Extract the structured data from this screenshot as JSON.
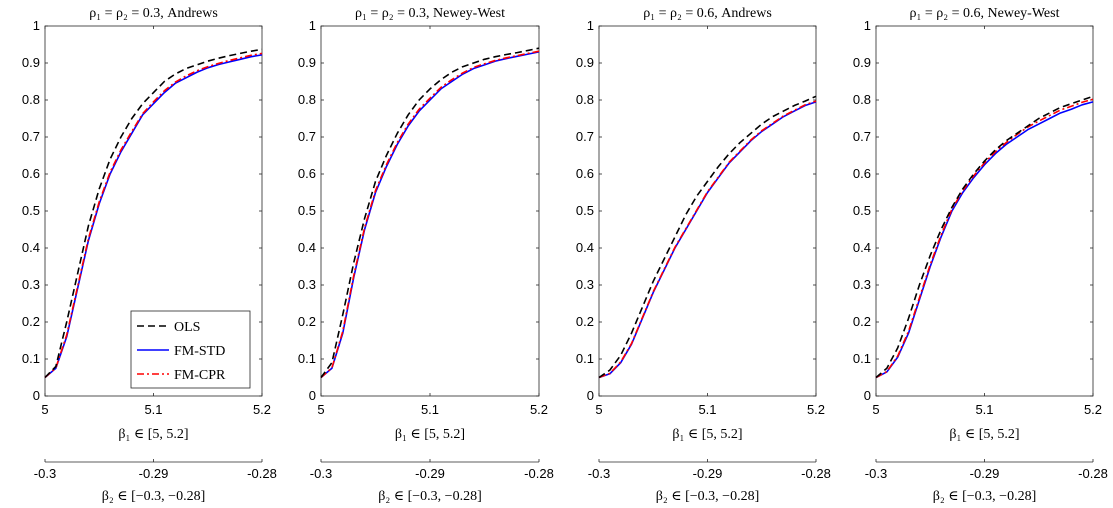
{
  "chart_data": [
    {
      "type": "line",
      "title": "ρ₁ = ρ₂ = 0.3, Andrews",
      "xlabel": "β₁ ∈ [5, 5.2]",
      "x2label": "β₂ ∈ [−0.3, −0.28]",
      "xlim": [
        5,
        5.2
      ],
      "ylim": [
        0,
        1
      ],
      "xticks": [
        "5",
        "5.1",
        "5.2"
      ],
      "x2ticks": [
        "-0.3",
        "-0.29",
        "-0.28"
      ],
      "yticks": [
        "0",
        "0.1",
        "0.2",
        "0.3",
        "0.4",
        "0.5",
        "0.6",
        "0.7",
        "0.8",
        "0.9",
        "1"
      ],
      "grid": false,
      "legend": {
        "position": "bottom-right",
        "entries": [
          "OLS",
          "FM-STD",
          "FM-CPR"
        ]
      },
      "x": [
        5.0,
        5.01,
        5.02,
        5.03,
        5.04,
        5.05,
        5.06,
        5.07,
        5.08,
        5.09,
        5.1,
        5.11,
        5.12,
        5.13,
        5.14,
        5.15,
        5.16,
        5.17,
        5.18,
        5.19,
        5.2
      ],
      "series": [
        {
          "name": "OLS",
          "color": "#000000",
          "dash": "dashed",
          "values": [
            0.05,
            0.08,
            0.2,
            0.33,
            0.46,
            0.56,
            0.64,
            0.7,
            0.75,
            0.79,
            0.82,
            0.85,
            0.87,
            0.885,
            0.895,
            0.905,
            0.913,
            0.92,
            0.926,
            0.932,
            0.937
          ]
        },
        {
          "name": "FM-STD",
          "color": "#0000ff",
          "dash": "solid",
          "values": [
            0.05,
            0.075,
            0.16,
            0.29,
            0.42,
            0.52,
            0.6,
            0.66,
            0.71,
            0.76,
            0.79,
            0.82,
            0.845,
            0.86,
            0.875,
            0.887,
            0.896,
            0.903,
            0.91,
            0.917,
            0.922
          ]
        },
        {
          "name": "FM-CPR",
          "color": "#ff0000",
          "dash": "dashdot",
          "values": [
            0.05,
            0.076,
            0.165,
            0.295,
            0.425,
            0.525,
            0.605,
            0.665,
            0.715,
            0.763,
            0.795,
            0.825,
            0.848,
            0.865,
            0.879,
            0.89,
            0.899,
            0.907,
            0.914,
            0.921,
            0.926
          ]
        }
      ]
    },
    {
      "type": "line",
      "title": "ρ₁ = ρ₂ = 0.3, Newey-West",
      "xlabel": "β₁ ∈ [5, 5.2]",
      "x2label": "β₂ ∈ [−0.3, −0.28]",
      "xlim": [
        5,
        5.2
      ],
      "ylim": [
        0,
        1
      ],
      "xticks": [
        "5",
        "5.1",
        "5.2"
      ],
      "x2ticks": [
        "-0.3",
        "-0.29",
        "-0.28"
      ],
      "yticks": [
        "0",
        "0.1",
        "0.2",
        "0.3",
        "0.4",
        "0.5",
        "0.6",
        "0.7",
        "0.8",
        "0.9",
        "1"
      ],
      "grid": false,
      "x": [
        5.0,
        5.01,
        5.02,
        5.03,
        5.04,
        5.05,
        5.06,
        5.07,
        5.08,
        5.09,
        5.1,
        5.11,
        5.12,
        5.13,
        5.14,
        5.15,
        5.16,
        5.17,
        5.18,
        5.19,
        5.2
      ],
      "series": [
        {
          "name": "OLS",
          "color": "#000000",
          "dash": "dashed",
          "values": [
            0.05,
            0.09,
            0.22,
            0.36,
            0.48,
            0.58,
            0.65,
            0.71,
            0.76,
            0.8,
            0.83,
            0.855,
            0.875,
            0.89,
            0.9,
            0.91,
            0.917,
            0.923,
            0.928,
            0.934,
            0.94
          ]
        },
        {
          "name": "FM-STD",
          "color": "#0000ff",
          "dash": "solid",
          "values": [
            0.05,
            0.075,
            0.17,
            0.32,
            0.45,
            0.55,
            0.62,
            0.68,
            0.73,
            0.77,
            0.8,
            0.83,
            0.85,
            0.87,
            0.885,
            0.895,
            0.905,
            0.912,
            0.918,
            0.924,
            0.93
          ]
        },
        {
          "name": "FM-CPR",
          "color": "#ff0000",
          "dash": "dashdot",
          "values": [
            0.05,
            0.076,
            0.175,
            0.325,
            0.455,
            0.555,
            0.625,
            0.685,
            0.735,
            0.775,
            0.805,
            0.834,
            0.855,
            0.873,
            0.888,
            0.898,
            0.907,
            0.914,
            0.92,
            0.926,
            0.932
          ]
        }
      ]
    },
    {
      "type": "line",
      "title": "ρ₁ = ρ₂ = 0.6, Andrews",
      "xlabel": "β₁ ∈ [5, 5.2]",
      "x2label": "β₂ ∈ [−0.3, −0.28]",
      "xlim": [
        5,
        5.2
      ],
      "ylim": [
        0,
        1
      ],
      "xticks": [
        "5",
        "5.1",
        "5.2"
      ],
      "x2ticks": [
        "-0.3",
        "-0.29",
        "-0.28"
      ],
      "yticks": [
        "0",
        "0.1",
        "0.2",
        "0.3",
        "0.4",
        "0.5",
        "0.6",
        "0.7",
        "0.8",
        "0.9",
        "1"
      ],
      "grid": false,
      "x": [
        5.0,
        5.01,
        5.02,
        5.03,
        5.04,
        5.05,
        5.06,
        5.07,
        5.08,
        5.09,
        5.1,
        5.11,
        5.12,
        5.13,
        5.14,
        5.15,
        5.16,
        5.17,
        5.18,
        5.19,
        5.2
      ],
      "series": [
        {
          "name": "OLS",
          "color": "#000000",
          "dash": "dashed",
          "values": [
            0.05,
            0.07,
            0.11,
            0.17,
            0.24,
            0.31,
            0.37,
            0.43,
            0.49,
            0.54,
            0.58,
            0.62,
            0.655,
            0.685,
            0.71,
            0.735,
            0.755,
            0.77,
            0.785,
            0.797,
            0.81
          ]
        },
        {
          "name": "FM-STD",
          "color": "#0000ff",
          "dash": "solid",
          "values": [
            0.05,
            0.06,
            0.09,
            0.14,
            0.21,
            0.28,
            0.34,
            0.4,
            0.45,
            0.5,
            0.55,
            0.59,
            0.63,
            0.66,
            0.69,
            0.715,
            0.735,
            0.755,
            0.77,
            0.785,
            0.795
          ]
        },
        {
          "name": "FM-CPR",
          "color": "#ff0000",
          "dash": "dashdot",
          "values": [
            0.05,
            0.061,
            0.092,
            0.142,
            0.212,
            0.282,
            0.342,
            0.402,
            0.452,
            0.502,
            0.552,
            0.592,
            0.632,
            0.662,
            0.692,
            0.717,
            0.737,
            0.757,
            0.772,
            0.787,
            0.797
          ]
        }
      ]
    },
    {
      "type": "line",
      "title": "ρ₁ = ρ₂ = 0.6, Newey-West",
      "xlabel": "β₁ ∈ [5, 5.2]",
      "x2label": "β₂ ∈ [−0.3, −0.28]",
      "xlim": [
        5,
        5.2
      ],
      "ylim": [
        0,
        1
      ],
      "xticks": [
        "5",
        "5.1",
        "5.2"
      ],
      "x2ticks": [
        "-0.3",
        "-0.29",
        "-0.28"
      ],
      "yticks": [
        "0",
        "0.1",
        "0.2",
        "0.3",
        "0.4",
        "0.5",
        "0.6",
        "0.7",
        "0.8",
        "0.9",
        "1"
      ],
      "grid": false,
      "x": [
        5.0,
        5.01,
        5.02,
        5.03,
        5.04,
        5.05,
        5.06,
        5.07,
        5.08,
        5.09,
        5.1,
        5.11,
        5.12,
        5.13,
        5.14,
        5.15,
        5.16,
        5.17,
        5.18,
        5.19,
        5.2
      ],
      "series": [
        {
          "name": "OLS",
          "color": "#000000",
          "dash": "dashed",
          "values": [
            0.05,
            0.075,
            0.13,
            0.21,
            0.3,
            0.38,
            0.45,
            0.51,
            0.56,
            0.6,
            0.635,
            0.665,
            0.69,
            0.71,
            0.73,
            0.75,
            0.765,
            0.78,
            0.79,
            0.8,
            0.81
          ]
        },
        {
          "name": "FM-STD",
          "color": "#0000ff",
          "dash": "solid",
          "values": [
            0.05,
            0.065,
            0.105,
            0.17,
            0.26,
            0.35,
            0.43,
            0.5,
            0.55,
            0.59,
            0.625,
            0.655,
            0.68,
            0.7,
            0.72,
            0.735,
            0.75,
            0.765,
            0.775,
            0.787,
            0.795
          ]
        },
        {
          "name": "FM-CPR",
          "color": "#ff0000",
          "dash": "dashdot",
          "values": [
            0.05,
            0.066,
            0.108,
            0.175,
            0.265,
            0.355,
            0.435,
            0.505,
            0.555,
            0.595,
            0.63,
            0.66,
            0.685,
            0.707,
            0.727,
            0.743,
            0.758,
            0.773,
            0.783,
            0.794,
            0.802
          ]
        }
      ]
    }
  ]
}
